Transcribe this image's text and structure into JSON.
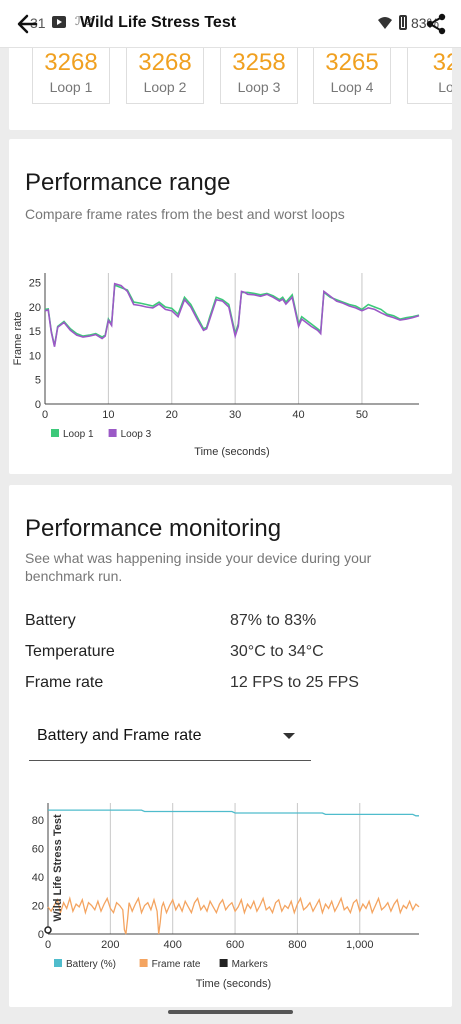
{
  "status_bar": {
    "time": "31",
    "extra": "ℐ ⊘",
    "battery_pct": "83%"
  },
  "app_bar": {
    "title": "Wild Life Stress Test"
  },
  "loops": [
    {
      "score": "3268",
      "label": "Loop 1"
    },
    {
      "score": "3268",
      "label": "Loop 2"
    },
    {
      "score": "3258",
      "label": "Loop 3"
    },
    {
      "score": "3265",
      "label": "Loop 4"
    },
    {
      "score": "32",
      "label": "Lo"
    }
  ],
  "performance_range": {
    "title": "Performance range",
    "subtitle": "Compare frame rates from the best and worst loops"
  },
  "performance_monitoring": {
    "title": "Performance monitoring",
    "subtitle": "See what was happening inside your device during your benchmark run.",
    "stats": [
      {
        "label": "Battery",
        "value": "87% to 83%"
      },
      {
        "label": "Temperature",
        "value": "30°C to 34°C"
      },
      {
        "label": "Frame rate",
        "value": "12 FPS to 25 FPS"
      }
    ],
    "dropdown": {
      "selected": "Battery and Frame rate"
    }
  },
  "chart_data": [
    {
      "type": "line",
      "title": "",
      "xlabel": "Time (seconds)",
      "ylabel": "Frame rate",
      "xlim": [
        0,
        59
      ],
      "ylim": [
        0,
        27
      ],
      "x_ticks": [
        0,
        10,
        20,
        30,
        40,
        50
      ],
      "y_ticks": [
        0,
        5,
        10,
        15,
        20,
        25
      ],
      "grid": "vertical",
      "legend": "bottom-left",
      "series": [
        {
          "name": "Loop 1",
          "color": "#3dc97a",
          "x": [
            0,
            0.5,
            1,
            1.5,
            2,
            3,
            4,
            5,
            6,
            7,
            8,
            9,
            9.5,
            10,
            10.5,
            11,
            12,
            13,
            14,
            15,
            16,
            17,
            18,
            19,
            20,
            21,
            22,
            23,
            24,
            25,
            25.5,
            26,
            27,
            28,
            29,
            30,
            30.5,
            31,
            31.5,
            32,
            33,
            34,
            35,
            36,
            37,
            37.5,
            38,
            39,
            40,
            40.5,
            41,
            42,
            43,
            43.5,
            44,
            45,
            46,
            47,
            48,
            49,
            50,
            51,
            52,
            53,
            54,
            55,
            56,
            57,
            58,
            59
          ],
          "y": [
            19.5,
            19.6,
            15.0,
            12.0,
            16.0,
            17.0,
            15.5,
            14.5,
            14.0,
            14.2,
            14.5,
            13.8,
            14.2,
            17.5,
            16.5,
            24.5,
            24.0,
            23.5,
            21.0,
            20.8,
            20.5,
            20.2,
            21.0,
            20.0,
            19.7,
            18.5,
            22.0,
            20.5,
            18.0,
            15.5,
            15.8,
            18.0,
            22.0,
            21.5,
            20.5,
            14.5,
            16.5,
            23.0,
            23.0,
            23.0,
            22.8,
            22.5,
            22.8,
            22.3,
            21.5,
            22.0,
            21.0,
            22.5,
            16.5,
            18.0,
            17.5,
            16.5,
            15.5,
            15.0,
            23.0,
            22.0,
            21.5,
            21.0,
            20.5,
            20.2,
            19.5,
            20.5,
            20.0,
            19.5,
            18.5,
            18.2,
            17.5,
            17.8,
            18.0,
            18.3
          ]
        },
        {
          "name": "Loop 3",
          "color": "#9b59c6",
          "x": [
            0,
            0.5,
            1,
            1.5,
            2,
            3,
            4,
            5,
            6,
            7,
            8,
            9,
            9.5,
            10,
            10.5,
            11,
            12,
            13,
            14,
            15,
            16,
            17,
            18,
            19,
            20,
            21,
            22,
            23,
            24,
            25,
            25.5,
            26,
            27,
            28,
            29,
            30,
            30.5,
            31,
            31.5,
            32,
            33,
            34,
            35,
            36,
            37,
            37.5,
            38,
            39,
            40,
            40.5,
            41,
            42,
            43,
            43.5,
            44,
            45,
            46,
            47,
            48,
            49,
            50,
            51,
            52,
            53,
            54,
            55,
            56,
            57,
            58,
            59
          ],
          "y": [
            19.2,
            19.4,
            14.8,
            11.8,
            15.8,
            16.8,
            15.2,
            14.2,
            13.8,
            14.0,
            14.3,
            13.5,
            14.0,
            17.2,
            16.2,
            24.8,
            24.4,
            23.2,
            20.5,
            20.3,
            20.0,
            19.8,
            20.6,
            19.5,
            19.2,
            18.0,
            21.5,
            20.0,
            17.5,
            15.2,
            15.5,
            17.5,
            21.5,
            21.2,
            20.0,
            14.0,
            16.0,
            23.2,
            23.0,
            22.6,
            22.5,
            22.2,
            22.6,
            22.0,
            21.2,
            21.6,
            20.6,
            22.0,
            16.0,
            17.5,
            17.0,
            16.0,
            15.2,
            14.5,
            23.2,
            22.2,
            21.2,
            20.8,
            20.2,
            19.8,
            19.2,
            19.8,
            19.5,
            18.8,
            18.2,
            17.8,
            17.3,
            17.5,
            17.8,
            18.2
          ]
        }
      ]
    },
    {
      "type": "line",
      "title": "",
      "xlabel": "Time (seconds)",
      "ylabel": "",
      "xlim": [
        0,
        1190
      ],
      "ylim": [
        0,
        92
      ],
      "x_ticks": [
        0,
        200,
        400,
        600,
        800,
        1000
      ],
      "x_tick_labels": [
        "0",
        "200",
        "400",
        "600",
        "800",
        "1,000"
      ],
      "y_ticks": [
        0,
        20,
        40,
        60,
        80
      ],
      "grid": "vertical",
      "legend": "bottom-left",
      "marker_label": "Wild Life Stress Test",
      "series": [
        {
          "name": "Battery (%)",
          "color": "#4fbccc",
          "x": [
            0,
            300,
            310,
            590,
            600,
            880,
            890,
            1170,
            1180,
            1190
          ],
          "y": [
            87,
            87,
            86,
            86,
            85,
            85,
            84,
            84,
            83,
            83
          ]
        },
        {
          "name": "Frame rate",
          "color": "#f4a460",
          "x": [
            0,
            10,
            20,
            30,
            40,
            50,
            60,
            70,
            80,
            90,
            100,
            110,
            120,
            130,
            140,
            150,
            160,
            170,
            180,
            190,
            200,
            210,
            220,
            230,
            240,
            245,
            250,
            255,
            260,
            270,
            280,
            290,
            300,
            310,
            320,
            330,
            340,
            350,
            355,
            360,
            365,
            370,
            380,
            390,
            400,
            410,
            420,
            430,
            440,
            450,
            460,
            470,
            480,
            490,
            500,
            510,
            520,
            530,
            540,
            550,
            560,
            570,
            580,
            590,
            600,
            610,
            620,
            630,
            640,
            650,
            660,
            670,
            680,
            690,
            700,
            710,
            720,
            730,
            740,
            750,
            760,
            770,
            780,
            790,
            800,
            810,
            820,
            830,
            840,
            850,
            860,
            870,
            880,
            890,
            900,
            910,
            920,
            930,
            940,
            950,
            960,
            970,
            980,
            990,
            1000,
            1010,
            1020,
            1030,
            1040,
            1050,
            1060,
            1070,
            1080,
            1090,
            1100,
            1110,
            1120,
            1130,
            1140,
            1150,
            1160,
            1170,
            1180,
            1190
          ],
          "y": [
            19,
            16,
            20,
            24,
            15,
            22,
            18,
            25,
            16,
            21,
            19,
            24,
            15,
            22,
            20,
            17,
            23,
            16,
            21,
            25,
            18,
            15,
            22,
            20,
            17,
            3,
            0,
            10,
            22,
            16,
            21,
            25,
            15,
            20,
            22,
            17,
            24,
            16,
            0,
            8,
            19,
            22,
            15,
            20,
            24,
            17,
            21,
            16,
            23,
            19,
            15,
            22,
            25,
            17,
            20,
            16,
            23,
            19,
            15,
            21,
            24,
            17,
            20,
            22,
            16,
            19,
            24,
            15,
            21,
            18,
            23,
            16,
            20,
            25,
            17,
            19,
            15,
            22,
            24,
            16,
            20,
            18,
            23,
            15,
            21,
            25,
            17,
            19,
            22,
            16,
            20,
            24,
            15,
            21,
            18,
            23,
            16,
            20,
            25,
            17,
            19,
            15,
            22,
            24,
            16,
            21,
            18,
            23,
            15,
            20,
            25,
            17,
            19,
            22,
            16,
            21,
            24,
            15,
            20,
            18,
            23,
            17,
            21,
            19
          ]
        },
        {
          "name": "Markers",
          "color": "#222222",
          "x": [
            0
          ],
          "y": [
            0
          ]
        }
      ]
    }
  ]
}
